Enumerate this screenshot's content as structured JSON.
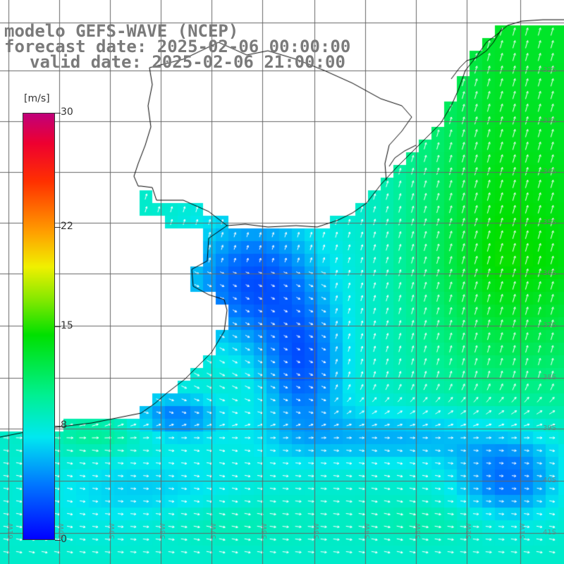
{
  "title": {
    "model": "modelo GEFS-WAVE (NCEP)",
    "forecast": "forecast date: 2025-02-06 00:00:00",
    "valid": "valid date: 2025-02-06 21:00:00"
  },
  "colorbar": {
    "unit": "[m/s]",
    "ticks": [
      "30",
      "22",
      "15",
      "8",
      "0"
    ],
    "tick_values": [
      30,
      22,
      15,
      8,
      0
    ],
    "range": [
      0,
      30
    ]
  },
  "lat_labels": [
    "32S",
    "33S",
    "34S",
    "35S",
    "36S",
    "37S",
    "38S",
    "39S",
    "40S",
    "41S"
  ],
  "lon_labels": [
    "61W",
    "60W",
    "59W",
    "58W",
    "57W",
    "56W",
    "55W",
    "54W",
    "53W",
    "52W",
    "51W"
  ],
  "colors": {
    "land": "#ffffff",
    "coast": "#000000",
    "grid": "#666666",
    "arrows": "#ffffff"
  }
}
